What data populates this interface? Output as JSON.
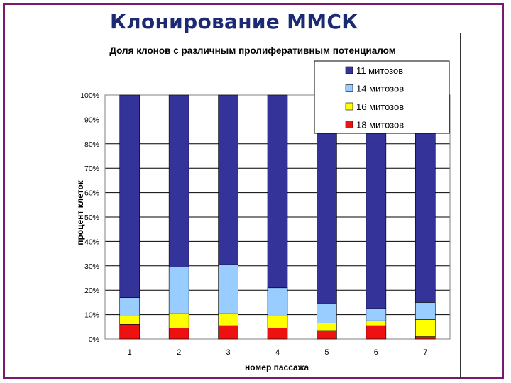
{
  "slide": {
    "title": "Клонирование ММСК"
  },
  "chart_data": {
    "type": "bar",
    "stacked": true,
    "title": "Доля клонов с различным пролиферативным потенциалом",
    "xlabel": "номер пассажа",
    "ylabel": "процент клеток",
    "categories": [
      "1",
      "2",
      "3",
      "4",
      "5",
      "6",
      "7"
    ],
    "yticks": [
      "0%",
      "10%",
      "20%",
      "30%",
      "40%",
      "50%",
      "60%",
      "70%",
      "80%",
      "90%",
      "100%"
    ],
    "ylim": [
      0,
      100
    ],
    "legend_position": "top-right",
    "series": [
      {
        "name": "18 митозов",
        "color": "#ee1111",
        "values": [
          6,
          4.5,
          5.5,
          4.5,
          3.5,
          5.5,
          1
        ]
      },
      {
        "name": "16 митозов",
        "color": "#ffff00",
        "values": [
          3.5,
          6,
          5,
          5,
          3,
          2,
          7
        ]
      },
      {
        "name": "14 митозов",
        "color": "#99ccff",
        "values": [
          7.5,
          19,
          20,
          11.5,
          8,
          5,
          7
        ]
      },
      {
        "name": "11 митозов",
        "color": "#333399",
        "values": [
          83,
          70.5,
          69.5,
          79,
          85.5,
          87.5,
          85
        ]
      }
    ]
  }
}
